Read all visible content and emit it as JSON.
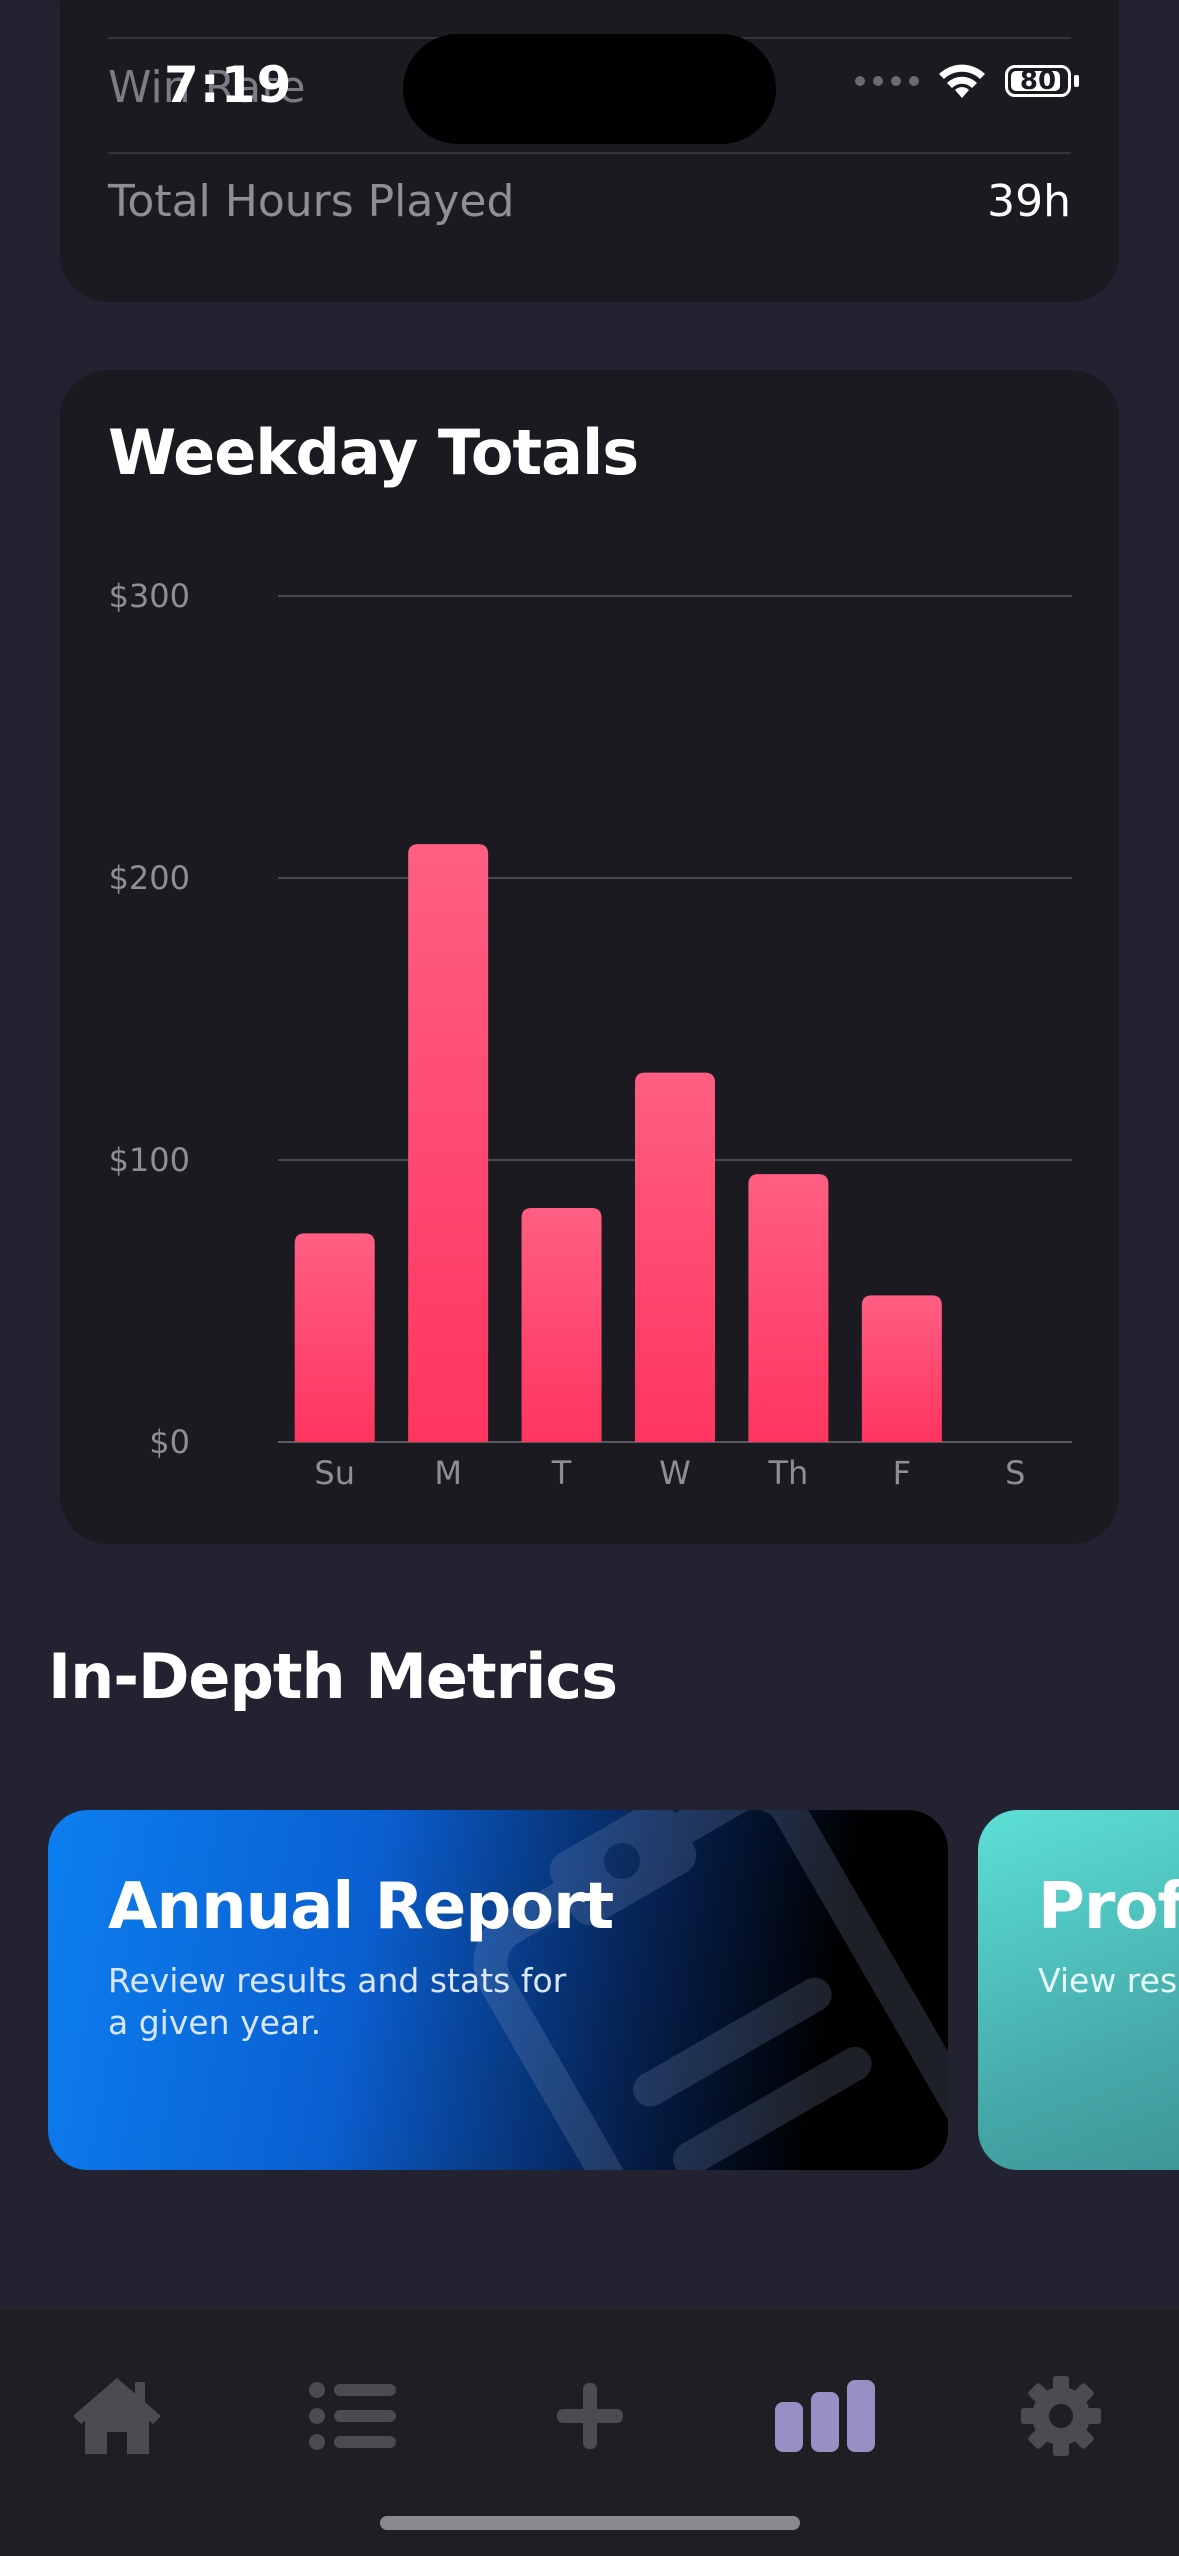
{
  "status_bar": {
    "time": "7:19",
    "battery": "80"
  },
  "stats": {
    "rows": [
      {
        "label": "Win Rate",
        "value": ""
      },
      {
        "label": "Total Hours Played",
        "value": "39h"
      }
    ]
  },
  "weekday_chart": {
    "title": "Weekday Totals"
  },
  "chart_data": {
    "type": "bar",
    "title": "Weekday Totals",
    "categories": [
      "Su",
      "M",
      "T",
      "W",
      "Th",
      "F",
      "S"
    ],
    "values": [
      74,
      212,
      83,
      131,
      95,
      52,
      0
    ],
    "ylim": [
      0,
      300
    ],
    "yticks": [
      0,
      100,
      200,
      300
    ],
    "ytick_labels": [
      "$0",
      "$100",
      "$200",
      "$300"
    ],
    "grid": true,
    "colors": {
      "bar_top": "#ff5e83",
      "bar_bottom": "#ff3560",
      "grid": "#4a4950"
    }
  },
  "metrics": {
    "section_title": "In-Depth Metrics",
    "cards": [
      {
        "title": "Annual Report",
        "subtitle": "Review results and stats for a given year.",
        "icon": "clipboard-icon"
      },
      {
        "title": "Profi",
        "subtitle": "View resu"
      }
    ]
  },
  "tab_bar": {
    "tabs": [
      {
        "name": "home",
        "icon": "home-icon",
        "active": false
      },
      {
        "name": "list",
        "icon": "list-icon",
        "active": false
      },
      {
        "name": "add",
        "icon": "plus-icon",
        "active": false
      },
      {
        "name": "stats",
        "icon": "bar-chart-icon",
        "active": true
      },
      {
        "name": "settings",
        "icon": "gear-icon",
        "active": false
      }
    ],
    "colors": {
      "active": "#9a8fc4",
      "inactive": "#4b4b50"
    }
  }
}
